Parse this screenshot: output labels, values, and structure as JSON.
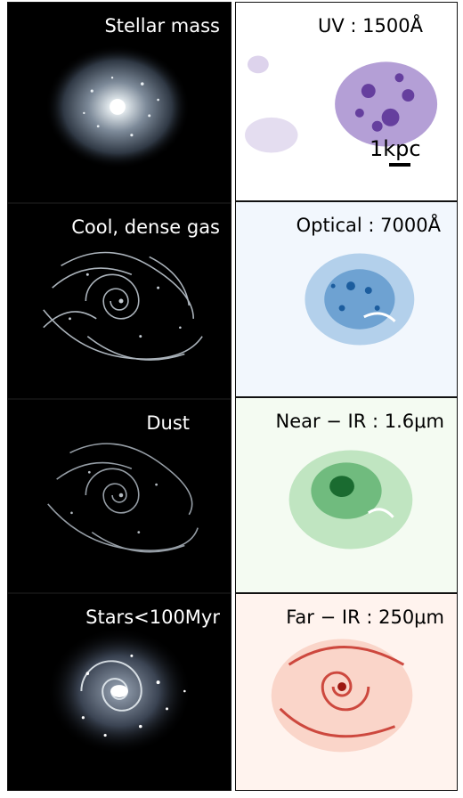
{
  "panels": {
    "left": [
      {
        "label": "Stellar mass",
        "colormap": "bone"
      },
      {
        "label": "Cool, dense gas",
        "colormap": "bone"
      },
      {
        "label": "Dust",
        "colormap": "bone"
      },
      {
        "label": "Stars<100Myr",
        "colormap": "bone"
      }
    ],
    "right": [
      {
        "label": "UV : 1500Å",
        "colormap": "purples",
        "accent": "#5a2a9a"
      },
      {
        "label": "Optical : 7000Å",
        "colormap": "blues",
        "accent": "#1c62a8"
      },
      {
        "label": "Near − IR : 1.6μm",
        "colormap": "greens",
        "accent": "#1f7a3a"
      },
      {
        "label": "Far − IR : 250μm",
        "colormap": "reds",
        "accent": "#c2261c"
      }
    ]
  },
  "scale_bar": {
    "label": "1kpc"
  },
  "colors": {
    "left_background": "#000000",
    "uv_bg": "#ffffff",
    "optical_bg": "#f2f7fd",
    "nearir_bg": "#f4fbf2",
    "farir_bg": "#fff3ee"
  }
}
